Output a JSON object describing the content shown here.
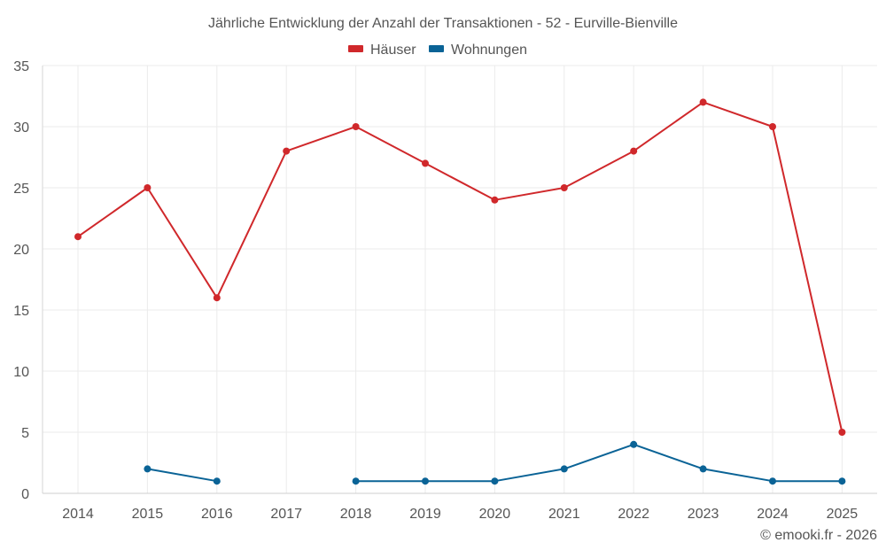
{
  "chart_data": {
    "type": "line",
    "title": "Jährliche Entwicklung der Anzahl der Transaktionen - 52 - Eurville-Bienville",
    "xlabel": "",
    "ylabel": "",
    "categories": [
      "2014",
      "2015",
      "2016",
      "2017",
      "2018",
      "2019",
      "2020",
      "2021",
      "2022",
      "2023",
      "2024",
      "2025"
    ],
    "ylim": [
      0,
      35
    ],
    "yticks": [
      0,
      5,
      10,
      15,
      20,
      25,
      30,
      35
    ],
    "grid": true,
    "legend_position": "top-center",
    "series": [
      {
        "name": "Häuser",
        "color": "#d0282b",
        "values": [
          21,
          25,
          16,
          28,
          30,
          27,
          24,
          25,
          28,
          32,
          30,
          5
        ]
      },
      {
        "name": "Wohnungen",
        "color": "#0a6396",
        "values": [
          null,
          2,
          1,
          null,
          1,
          1,
          1,
          2,
          4,
          2,
          1,
          1
        ]
      }
    ]
  },
  "footer": {
    "credit": "© emooki.fr - 2026"
  }
}
